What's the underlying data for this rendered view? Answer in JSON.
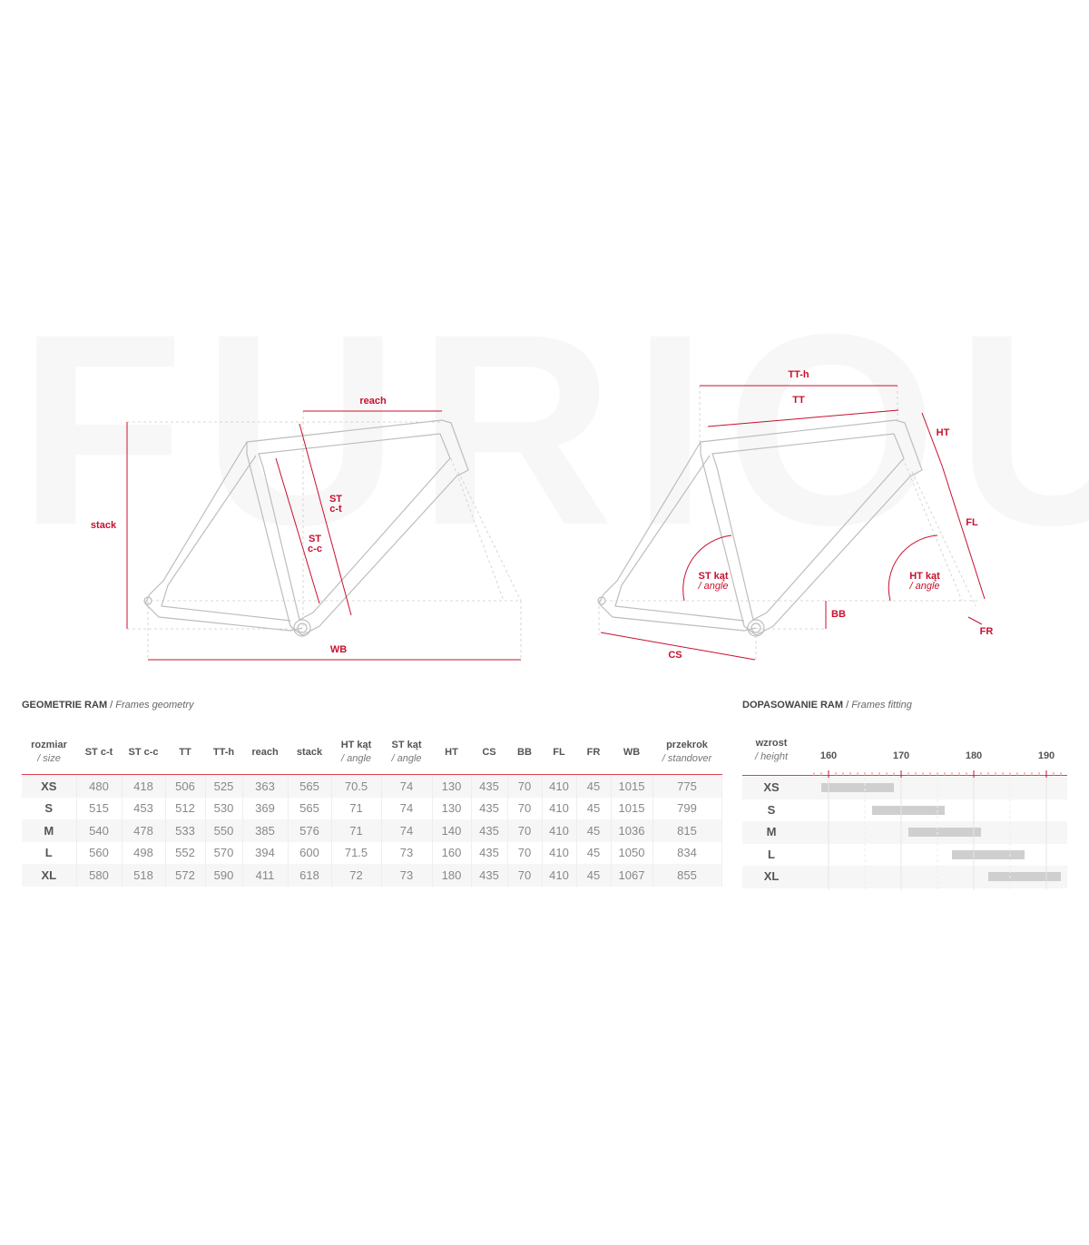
{
  "watermark": "FURIOUS",
  "colors": {
    "accent": "#c8102e",
    "frame": "#bdbdbd",
    "bar": "#cfcfcf"
  },
  "diagram_left": {
    "labels": {
      "reach": "reach",
      "stack": "stack",
      "st_ct": "ST",
      "st_ct_sub": "c-t",
      "st_cc": "ST",
      "st_cc_sub": "c-c",
      "wb": "WB"
    }
  },
  "diagram_right": {
    "labels": {
      "tth": "TT-h",
      "tt": "TT",
      "ht": "HT",
      "fl": "FL",
      "st_angle": "ST kąt",
      "st_angle_sub": "/ angle",
      "ht_angle": "HT kąt",
      "ht_angle_sub": "/ angle",
      "bb": "BB",
      "cs": "CS",
      "fr": "FR"
    }
  },
  "geometry": {
    "title": "GEOMETRIE RAM",
    "subtitle": "Frames geometry",
    "headers": [
      {
        "t": "rozmiar",
        "s": "/ size"
      },
      {
        "t": "ST c-t"
      },
      {
        "t": "ST c-c"
      },
      {
        "t": "TT"
      },
      {
        "t": "TT-h"
      },
      {
        "t": "reach"
      },
      {
        "t": "stack"
      },
      {
        "t": "HT kąt",
        "s": "/ angle"
      },
      {
        "t": "ST kąt",
        "s": "/ angle"
      },
      {
        "t": "HT"
      },
      {
        "t": "CS"
      },
      {
        "t": "BB"
      },
      {
        "t": "FL"
      },
      {
        "t": "FR"
      },
      {
        "t": "WB"
      },
      {
        "t": "przekrok",
        "s": "/ standover"
      }
    ],
    "rows": [
      [
        "XS",
        "480",
        "418",
        "506",
        "525",
        "363",
        "565",
        "70.5",
        "74",
        "130",
        "435",
        "70",
        "410",
        "45",
        "1015",
        "775"
      ],
      [
        "S",
        "515",
        "453",
        "512",
        "530",
        "369",
        "565",
        "71",
        "74",
        "130",
        "435",
        "70",
        "410",
        "45",
        "1015",
        "799"
      ],
      [
        "M",
        "540",
        "478",
        "533",
        "550",
        "385",
        "576",
        "71",
        "74",
        "140",
        "435",
        "70",
        "410",
        "45",
        "1036",
        "815"
      ],
      [
        "L",
        "560",
        "498",
        "552",
        "570",
        "394",
        "600",
        "71.5",
        "73",
        "160",
        "435",
        "70",
        "410",
        "45",
        "1050",
        "834"
      ],
      [
        "XL",
        "580",
        "518",
        "572",
        "590",
        "411",
        "618",
        "72",
        "73",
        "180",
        "435",
        "70",
        "410",
        "45",
        "1067",
        "855"
      ]
    ]
  },
  "chart_data": {
    "type": "bar",
    "title": "DOPASOWANIE RAM",
    "subtitle": "Frames fitting",
    "xlabel": "wzrost",
    "xlabel_sub": "/ height",
    "xlim": [
      153,
      196
    ],
    "ticks": [
      160,
      170,
      180,
      190
    ],
    "categories": [
      "XS",
      "S",
      "M",
      "L",
      "XL"
    ],
    "ranges": [
      [
        159,
        169
      ],
      [
        166,
        176
      ],
      [
        171,
        181
      ],
      [
        177,
        187
      ],
      [
        182,
        192
      ]
    ]
  }
}
